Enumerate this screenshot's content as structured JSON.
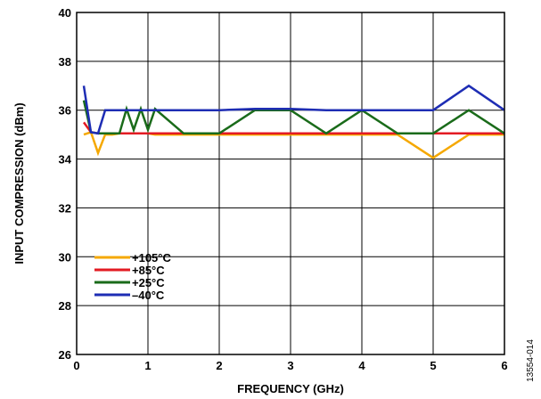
{
  "chart_data": {
    "type": "line",
    "xlabel": "FREQUENCY (GHz)",
    "ylabel": "INPUT COMPRESSION (dBm)",
    "xlim": [
      0,
      6
    ],
    "ylim": [
      26,
      40
    ],
    "x_ticks": [
      0,
      1,
      2,
      3,
      4,
      5,
      6
    ],
    "y_ticks": [
      26,
      28,
      30,
      32,
      34,
      36,
      38,
      40
    ],
    "x_tick_labels": [
      "0",
      "1",
      "2",
      "3",
      "4",
      "5",
      "6"
    ],
    "y_tick_labels": [
      "26",
      "28",
      "30",
      "32",
      "34",
      "36",
      "38",
      "40"
    ],
    "grid": true,
    "legend_position": "bottom-left",
    "figure_id": "13554-014",
    "series": [
      {
        "name": "+105°C",
        "color": "#F5A800",
        "x": [
          0.1,
          0.2,
          0.3,
          0.4,
          0.5,
          0.6,
          0.7,
          0.8,
          0.9,
          1.0,
          1.1,
          1.5,
          2.0,
          2.5,
          3.0,
          3.5,
          4.0,
          4.5,
          5.0,
          5.5,
          6.0
        ],
        "y": [
          35.0,
          35.1,
          34.25,
          35.0,
          35.0,
          35.05,
          35.05,
          35.05,
          35.05,
          35.05,
          35.0,
          35.0,
          35.0,
          35.0,
          35.0,
          35.0,
          35.0,
          35.0,
          34.05,
          35.0,
          35.0
        ]
      },
      {
        "name": "+85°C",
        "color": "#E31B23",
        "x": [
          0.1,
          0.2,
          0.3,
          0.4,
          0.5,
          0.6,
          0.7,
          0.8,
          0.9,
          1.0,
          1.1,
          1.5,
          2.0,
          2.5,
          3.0,
          3.5,
          4.0,
          4.5,
          5.0,
          5.5,
          6.0
        ],
        "y": [
          35.5,
          35.1,
          35.05,
          35.05,
          35.05,
          35.05,
          35.05,
          35.05,
          35.05,
          35.05,
          35.05,
          35.05,
          35.05,
          35.05,
          35.05,
          35.05,
          35.05,
          35.05,
          35.05,
          35.05,
          35.05
        ]
      },
      {
        "name": "+25°C",
        "color": "#1A6B1A",
        "x": [
          0.1,
          0.2,
          0.3,
          0.4,
          0.5,
          0.6,
          0.7,
          0.8,
          0.9,
          1.0,
          1.1,
          1.5,
          2.0,
          2.5,
          3.0,
          3.5,
          4.0,
          4.5,
          5.0,
          5.5,
          6.0
        ],
        "y": [
          36.4,
          35.1,
          35.05,
          35.05,
          35.05,
          35.05,
          36.05,
          35.2,
          36.05,
          35.2,
          36.05,
          35.05,
          35.05,
          36.0,
          36.0,
          35.05,
          36.0,
          35.05,
          35.05,
          36.0,
          35.05
        ]
      },
      {
        "name": "–40°C",
        "color": "#1E2DB4",
        "x": [
          0.1,
          0.2,
          0.3,
          0.4,
          0.5,
          0.6,
          0.7,
          0.8,
          0.9,
          1.0,
          1.1,
          1.5,
          2.0,
          2.5,
          3.0,
          3.5,
          4.0,
          4.5,
          5.0,
          5.5,
          6.0
        ],
        "y": [
          37.0,
          35.1,
          35.05,
          36.0,
          36.0,
          36.0,
          36.0,
          36.0,
          36.0,
          36.0,
          36.0,
          36.0,
          36.0,
          36.05,
          36.05,
          36.0,
          36.0,
          36.0,
          36.0,
          37.0,
          36.0
        ]
      }
    ]
  }
}
